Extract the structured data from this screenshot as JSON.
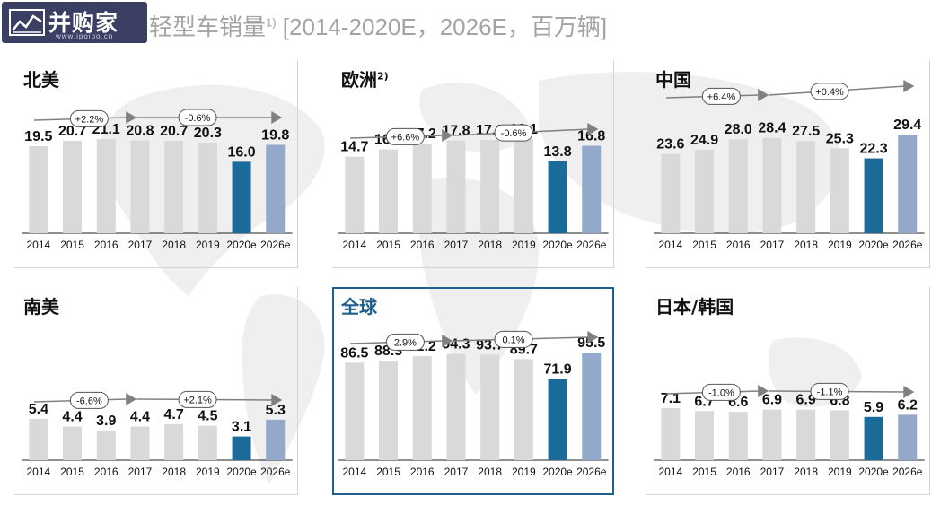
{
  "logo": {
    "text": "并购家",
    "sub": "www.ipoipo.cn"
  },
  "title": {
    "main": "轻型车销量",
    "sup": "1)",
    "rest": " [2014-2020E，2026E，百万辆]"
  },
  "colors": {
    "hist": "#d9d9d9",
    "cur": "#1a6a9a",
    "fore": "#93a9c9",
    "arrow": "#808080",
    "accent": "#1f5f8b"
  },
  "chart_data": [
    {
      "type": "bar",
      "title": "北美",
      "title_sup": "",
      "categories": [
        "2014",
        "2015",
        "2016",
        "2017",
        "2018",
        "2019",
        "2020e",
        "2026e"
      ],
      "values": [
        19.5,
        20.7,
        21.1,
        20.8,
        20.7,
        20.3,
        16.0,
        19.8
      ],
      "labels": [
        "19.5",
        "20.7",
        "21.1",
        "20.8",
        "20.7",
        "20.3",
        "16.0",
        "19.8"
      ],
      "growth": [
        "+2.2%",
        "-0.6%"
      ]
    },
    {
      "type": "bar",
      "title": "欧洲",
      "title_sup": "2)",
      "categories": [
        "2014",
        "2015",
        "2016",
        "2017",
        "2018",
        "2019",
        "2020e",
        "2026e"
      ],
      "values": [
        14.7,
        16.1,
        17.2,
        17.8,
        17.9,
        18.1,
        13.8,
        16.8
      ],
      "labels": [
        "14.7",
        "16.1",
        "17.2",
        "17.8",
        "17.9",
        "18.1",
        "13.8",
        "16.8"
      ],
      "growth": [
        "+6.6%",
        "-0.6%"
      ]
    },
    {
      "type": "bar",
      "title": "中国",
      "title_sup": "",
      "categories": [
        "2014",
        "2015",
        "2016",
        "2017",
        "2018",
        "2019",
        "2020e",
        "2026e"
      ],
      "values": [
        23.6,
        24.9,
        28.0,
        28.4,
        27.5,
        25.3,
        22.3,
        29.4
      ],
      "labels": [
        "23.6",
        "24.9",
        "28.0",
        "28.4",
        "27.5",
        "25.3",
        "22.3",
        "29.4"
      ],
      "growth": [
        "+6.4%",
        "+0.4%"
      ]
    },
    {
      "type": "bar",
      "title": "南美",
      "title_sup": "",
      "categories": [
        "2014",
        "2015",
        "2016",
        "2017",
        "2018",
        "2019",
        "2020e",
        "2026e"
      ],
      "values": [
        5.4,
        4.4,
        3.9,
        4.4,
        4.7,
        4.5,
        3.1,
        5.3
      ],
      "labels": [
        "5.4",
        "4.4",
        "3.9",
        "4.4",
        "4.7",
        "4.5",
        "3.1",
        "5.3"
      ],
      "growth": [
        "-6.6%",
        "+2.1%"
      ]
    },
    {
      "type": "bar",
      "title": "全球",
      "title_sup": "",
      "categories": [
        "2014",
        "2015",
        "2016",
        "2017",
        "2018",
        "2019",
        "2020e",
        "2026e"
      ],
      "values": [
        86.5,
        88.3,
        92.2,
        94.3,
        93.7,
        89.7,
        71.9,
        95.5
      ],
      "labels": [
        "86.5",
        "88.3",
        "92.2",
        "94.3",
        "93.7",
        "89.7",
        "71.9",
        "95.5"
      ],
      "growth": [
        "2.9%",
        "0.1%"
      ]
    },
    {
      "type": "bar",
      "title": "日本/韩国",
      "title_sup": "",
      "categories": [
        "2014",
        "2015",
        "2016",
        "2017",
        "2018",
        "2019",
        "2020e",
        "2026e"
      ],
      "values": [
        7.1,
        6.7,
        6.6,
        6.9,
        6.9,
        6.8,
        5.9,
        6.2
      ],
      "labels": [
        "7.1",
        "6.7",
        "6.6",
        "6.9",
        "6.9",
        "6.8",
        "5.9",
        "6.2"
      ],
      "growth": [
        "-1.0%",
        "-1.1%"
      ]
    }
  ]
}
